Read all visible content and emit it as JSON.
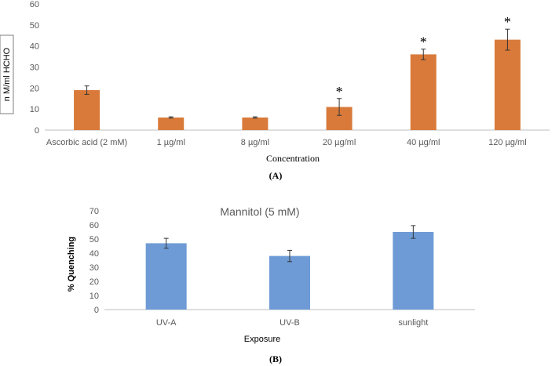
{
  "chart_data": [
    {
      "type": "bar",
      "panel": "(A)",
      "title": "",
      "xlabel": "Concentration",
      "ylabel": "n M/ml HCHO",
      "ylim": [
        0,
        60
      ],
      "yticks": [
        0,
        10,
        20,
        30,
        40,
        50,
        60
      ],
      "categories": [
        "Ascorbic acid (2 mM)",
        "1 µg/ml",
        "8 µg/ml",
        "20 µg/ml",
        "40 µg/ml",
        "120 µg/ml"
      ],
      "values": [
        19,
        6,
        6,
        11,
        36,
        43
      ],
      "errors": [
        2,
        0.3,
        0.3,
        4,
        2.5,
        5
      ],
      "significance": [
        "",
        "",
        "",
        "*",
        "*",
        "*"
      ],
      "color": "#d97a3a",
      "grid": false
    },
    {
      "type": "bar",
      "panel": "(B)",
      "title": "Mannitol  (5 mM)",
      "xlabel": "Exposure",
      "ylabel": "% Quenching",
      "ylim": [
        0,
        70
      ],
      "yticks": [
        0,
        10,
        20,
        30,
        40,
        50,
        60,
        70
      ],
      "categories": [
        "UV-A",
        "UV-B",
        "sunlight"
      ],
      "values": [
        47,
        38,
        55
      ],
      "errors": [
        3.5,
        4,
        4.5
      ],
      "color": "#6e9bd6",
      "grid": false
    }
  ]
}
